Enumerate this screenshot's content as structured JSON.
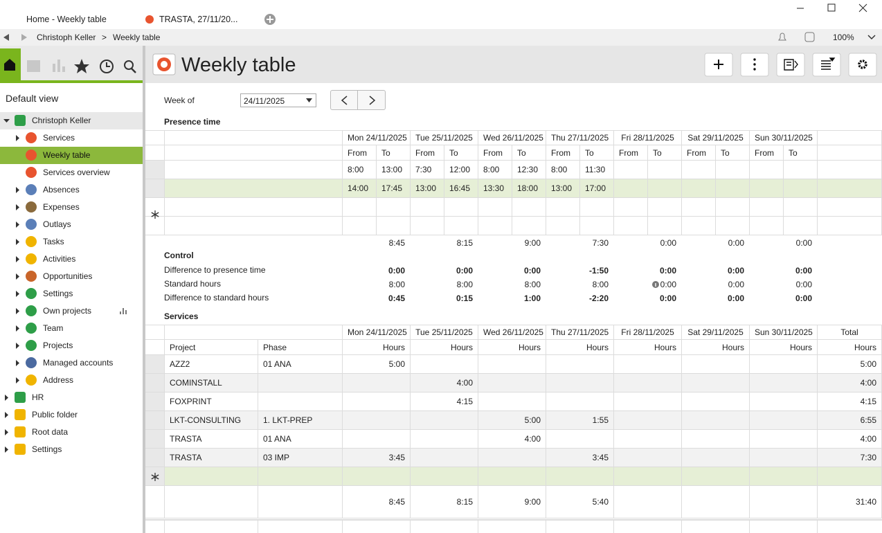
{
  "tabs": [
    {
      "label": "Home - Weekly table",
      "active": true
    },
    {
      "label": "TRASTA, 27/11/20...",
      "active": false
    }
  ],
  "breadcrumb": {
    "items": [
      "Christoph Keller",
      "Weekly table"
    ],
    "separator": ">"
  },
  "zoom": "100%",
  "sidebar": {
    "view": "Default view",
    "tree": [
      {
        "label": "Christoph Keller",
        "level": 0,
        "expandable": true,
        "expanded": true
      },
      {
        "label": "Services",
        "level": 1,
        "expandable": true
      },
      {
        "label": "Weekly table",
        "level": 1,
        "expandable": false,
        "selected": true
      },
      {
        "label": "Services overview",
        "level": 1,
        "expandable": false
      },
      {
        "label": "Absences",
        "level": 1,
        "expandable": true
      },
      {
        "label": "Expenses",
        "level": 1,
        "expandable": true
      },
      {
        "label": "Outlays",
        "level": 1,
        "expandable": true
      },
      {
        "label": "Tasks",
        "level": 1,
        "expandable": true
      },
      {
        "label": "Activities",
        "level": 1,
        "expandable": true
      },
      {
        "label": "Opportunities",
        "level": 1,
        "expandable": true
      },
      {
        "label": "Settings",
        "level": 1,
        "expandable": true
      },
      {
        "label": "Own projects",
        "level": 1,
        "expandable": true
      },
      {
        "label": "Team",
        "level": 1,
        "expandable": true
      },
      {
        "label": "Projects",
        "level": 1,
        "expandable": true
      },
      {
        "label": "Managed accounts",
        "level": 1,
        "expandable": true
      },
      {
        "label": "Address",
        "level": 1,
        "expandable": true
      },
      {
        "label": "HR",
        "level": 0,
        "expandable": true
      },
      {
        "label": "Public folder",
        "level": 0,
        "expandable": true
      },
      {
        "label": "Root data",
        "level": 0,
        "expandable": true
      },
      {
        "label": "Settings",
        "level": 0,
        "expandable": true
      }
    ]
  },
  "header": {
    "title": "Weekly table"
  },
  "week": {
    "label": "Week of",
    "date": "24/11/2025"
  },
  "presence": {
    "title": "Presence time",
    "days": [
      "Mon 24/11/2025",
      "Tue 25/11/2025",
      "Wed 26/11/2025",
      "Thu 27/11/2025",
      "Fri 28/11/2025",
      "Sat 29/11/2025",
      "Sun 30/11/2025"
    ],
    "from": "From",
    "to": "To",
    "rows": [
      [
        "8:00",
        "13:00",
        "7:30",
        "12:00",
        "8:00",
        "12:30",
        "8:00",
        "11:30",
        null,
        null,
        null,
        null,
        null,
        null
      ],
      [
        "14:00",
        "17:45",
        "13:00",
        "16:45",
        "13:30",
        "18:00",
        "13:00",
        "17:00",
        null,
        null,
        null,
        null,
        null,
        null
      ]
    ],
    "totals": [
      "8:45",
      "8:15",
      "9:00",
      "7:30",
      "0:00",
      "0:00",
      "0:00"
    ]
  },
  "control": {
    "title": "Control",
    "rows": [
      {
        "label": "Difference to presence time",
        "bold": true,
        "values": [
          "0:00",
          "0:00",
          "0:00",
          "-1:50",
          "0:00",
          "0:00",
          "0:00"
        ]
      },
      {
        "label": "Standard hours",
        "bold": false,
        "values": [
          "8:00",
          "8:00",
          "8:00",
          "8:00",
          "0:00",
          "0:00",
          "0:00"
        ]
      },
      {
        "label": "Difference to standard hours",
        "bold": true,
        "values": [
          "0:45",
          "0:15",
          "1:00",
          "-2:20",
          "0:00",
          "0:00",
          "0:00"
        ]
      }
    ]
  },
  "services": {
    "title": "Services",
    "days": [
      "Mon 24/11/2025",
      "Tue 25/11/2025",
      "Wed 26/11/2025",
      "Thu 27/11/2025",
      "Fri 28/11/2025",
      "Sat 29/11/2025",
      "Sun 30/11/2025"
    ],
    "total": "Total",
    "project": "Project",
    "phase": "Phase",
    "hours": "Hours",
    "rows": [
      {
        "project": "AZZ2",
        "phase": "01 ANA",
        "hours": [
          "5:00",
          null,
          null,
          null,
          null,
          null,
          null
        ],
        "total": "5:00"
      },
      {
        "project": "COMINSTALL",
        "phase": null,
        "hours": [
          null,
          "4:00",
          null,
          null,
          null,
          null,
          null
        ],
        "total": "4:00"
      },
      {
        "project": "FOXPRINT",
        "phase": null,
        "hours": [
          null,
          "4:15",
          null,
          null,
          null,
          null,
          null
        ],
        "total": "4:15"
      },
      {
        "project": "LKT-CONSULTING",
        "phase": "1. LKT-PREP",
        "hours": [
          null,
          null,
          "5:00",
          "1:55",
          null,
          null,
          null
        ],
        "total": "6:55"
      },
      {
        "project": "TRASTA",
        "phase": "01 ANA",
        "hours": [
          null,
          null,
          "4:00",
          null,
          null,
          null,
          null
        ],
        "total": "4:00"
      },
      {
        "project": "TRASTA",
        "phase": "03 IMP",
        "hours": [
          "3:45",
          null,
          null,
          "3:45",
          null,
          null,
          null
        ],
        "total": "7:30"
      }
    ],
    "totals": [
      "8:45",
      "8:15",
      "9:00",
      "5:40",
      null,
      null,
      null
    ],
    "grand_total": "31:40"
  }
}
